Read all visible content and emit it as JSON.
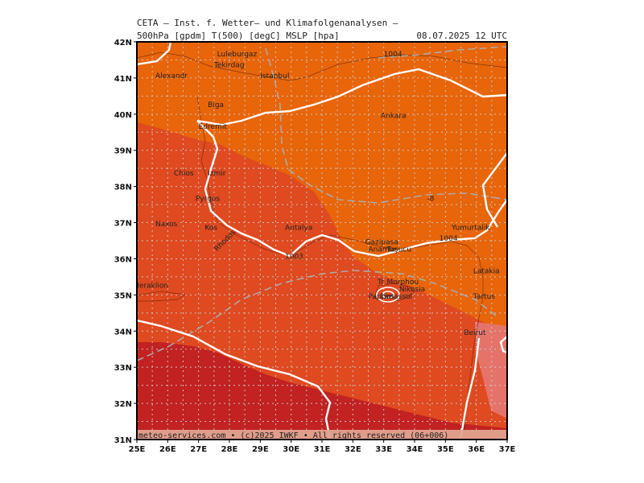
{
  "header": {
    "line1": "CETA — Inst. f. Wetter— und Klimafolgenanalysen —",
    "line2": "500hPa [gpdm] T(500) [degC] MSLP [hpa]",
    "datetime": "08.07.2025 12 UTC"
  },
  "footer": "meteo-services.com • (c)2025 IWKF • All rights reserved (06+006)",
  "axes": {
    "lat_labels": [
      "42N",
      "41N",
      "40N",
      "39N",
      "38N",
      "37N",
      "36N",
      "35N",
      "34N",
      "33N",
      "32N",
      "31N"
    ],
    "lon_labels": [
      "25E",
      "26E",
      "27E",
      "28E",
      "29E",
      "30E",
      "31E",
      "32E",
      "33E",
      "34E",
      "35E",
      "36E",
      "37E"
    ]
  },
  "colors": {
    "band_orange": "#e8650a",
    "band_red_orange": "#df4a20",
    "band_red": "#c22222",
    "band_pink": "#e5736a",
    "geopotential": "#ffffff",
    "pressure": "#aaaaaa"
  },
  "contour_labels": [
    {
      "text": "1004",
      "lon": 33.0,
      "lat": 41.6
    },
    {
      "text": "-8",
      "lon": 34.4,
      "lat": 37.6
    },
    {
      "text": "1004",
      "lon": 34.8,
      "lat": 36.5
    },
    {
      "text": "1003",
      "lon": 29.8,
      "lat": 36.0
    }
  ],
  "cities": [
    {
      "name": "Luleburgaz",
      "lon": 27.6,
      "lat": 41.6
    },
    {
      "name": "Tekirdag",
      "lon": 27.5,
      "lat": 41.3
    },
    {
      "name": "Alexandr",
      "lon": 25.6,
      "lat": 41.0
    },
    {
      "name": "Istanbul",
      "lon": 29.0,
      "lat": 41.0
    },
    {
      "name": "Biga",
      "lon": 27.3,
      "lat": 40.2
    },
    {
      "name": "Edremit",
      "lon": 27.0,
      "lat": 39.6
    },
    {
      "name": "Ankara",
      "lon": 32.9,
      "lat": 39.9
    },
    {
      "name": "Chios",
      "lon": 26.2,
      "lat": 38.3
    },
    {
      "name": "Izmir",
      "lon": 27.3,
      "lat": 38.3
    },
    {
      "name": "Pyrgos",
      "lon": 26.9,
      "lat": 37.6
    },
    {
      "name": "Naxos",
      "lon": 25.6,
      "lat": 36.9
    },
    {
      "name": "Kos",
      "lon": 27.2,
      "lat": 36.8
    },
    {
      "name": "Rhodos",
      "lon": 27.6,
      "lat": 36.2
    },
    {
      "name": "Antalya",
      "lon": 29.8,
      "lat": 36.8
    },
    {
      "name": "Gazipasa",
      "lon": 32.4,
      "lat": 36.4
    },
    {
      "name": "Anamur",
      "lon": 32.5,
      "lat": 36.2
    },
    {
      "name": "Taşucu",
      "lon": 33.1,
      "lat": 36.2
    },
    {
      "name": "Yumurtalik",
      "lon": 35.2,
      "lat": 36.8
    },
    {
      "name": "Latakia",
      "lon": 35.9,
      "lat": 35.6
    },
    {
      "name": "Tartus",
      "lon": 35.9,
      "lat": 34.9
    },
    {
      "name": "Heraklion",
      "lon": 24.9,
      "lat": 35.2
    },
    {
      "name": "Tr",
      "lon": 32.8,
      "lat": 35.3
    },
    {
      "name": "Morphou",
      "lon": 33.1,
      "lat": 35.3
    },
    {
      "name": "Nikosia",
      "lon": 33.5,
      "lat": 35.1
    },
    {
      "name": "Paphos",
      "lon": 32.5,
      "lat": 34.9
    },
    {
      "name": "Limassol",
      "lon": 32.9,
      "lat": 34.9
    },
    {
      "name": "Beirut",
      "lon": 35.6,
      "lat": 33.9
    }
  ]
}
